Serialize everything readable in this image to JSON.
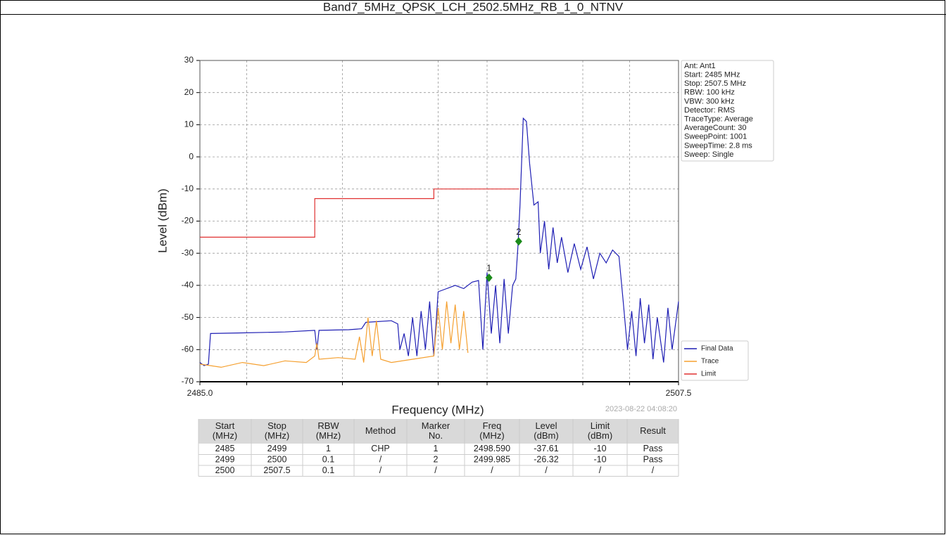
{
  "header": {
    "title": "Band7_5MHz_QPSK_LCH_2502.5MHz_RB_1_0_NTNV"
  },
  "chart_data": {
    "type": "line",
    "xlabel": "Frequency (MHz)",
    "ylabel": "Level (dBm)",
    "xlim": [
      2485.0,
      2507.5
    ],
    "ylim": [
      -70,
      30
    ],
    "xticks": [
      {
        "value": 2485.0,
        "label": "2485.0"
      },
      {
        "value": 2487.2,
        "label": null
      },
      {
        "value": 2491.7,
        "label": null
      },
      {
        "value": 2496.2,
        "label": null
      },
      {
        "value": 2498.5,
        "label": null
      },
      {
        "value": 2503.0,
        "label": null
      },
      {
        "value": 2505.2,
        "label": null
      },
      {
        "value": 2507.5,
        "label": "2507.5"
      }
    ],
    "yticks": [
      30,
      20,
      10,
      0,
      -10,
      -20,
      -30,
      -40,
      -50,
      -60,
      -70
    ],
    "grid": true,
    "legend": "lower right",
    "series": [
      {
        "name": "Final Data",
        "color": "#1f1fb4",
        "x": [
          2485.0,
          2485.2,
          2485.4,
          2485.5,
          2487.0,
          2489.0,
          2490.4,
          2490.5,
          2490.6,
          2492.0,
          2492.6,
          2492.8,
          2494.0,
          2494.3,
          2494.4,
          2494.6,
          2494.8,
          2495.0,
          2495.2,
          2495.4,
          2495.6,
          2495.8,
          2496.0,
          2496.2,
          2496.6,
          2497.0,
          2497.4,
          2497.8,
          2498.1,
          2498.3,
          2498.5,
          2498.7,
          2498.9,
          2499.1,
          2499.3,
          2499.5,
          2499.7,
          2499.85,
          2499.95,
          2500.05,
          2500.2,
          2500.35,
          2500.5,
          2500.7,
          2500.9,
          2501.0,
          2501.2,
          2501.4,
          2501.6,
          2501.8,
          2502.0,
          2502.3,
          2502.6,
          2502.9,
          2503.2,
          2503.5,
          2503.8,
          2504.1,
          2504.4,
          2504.7,
          2504.9,
          2505.1,
          2505.3,
          2505.5,
          2505.7,
          2505.9,
          2506.1,
          2506.3,
          2506.5,
          2506.8,
          2507.0,
          2507.2,
          2507.5
        ],
        "values": [
          -64,
          -65,
          -64.5,
          -55,
          -54.8,
          -54.5,
          -54,
          -60,
          -54,
          -53.8,
          -53.5,
          -51.5,
          -51,
          -52,
          -60,
          -55,
          -62,
          -50,
          -62,
          -48,
          -60,
          -45,
          -62,
          -42,
          -41,
          -40,
          -41,
          -39,
          -38.5,
          -60,
          -36,
          -55,
          -40,
          -58,
          -38,
          -55,
          -40,
          -38,
          -28,
          -15,
          12,
          11,
          -2,
          -15,
          -14,
          -30,
          -20,
          -35,
          -22,
          -33,
          -25,
          -36,
          -27,
          -35,
          -28,
          -38,
          -30,
          -33,
          -29,
          -31,
          -45,
          -60,
          -48,
          -62,
          -44,
          -58,
          -46,
          -63,
          -50,
          -64,
          -47,
          -60,
          -45
        ]
      },
      {
        "name": "Trace",
        "color": "#f5a030",
        "x": [
          2485.0,
          2486.0,
          2487.0,
          2488.0,
          2489.0,
          2490.0,
          2490.4,
          2490.5,
          2490.6,
          2491.5,
          2492.3,
          2492.5,
          2492.7,
          2492.9,
          2493.1,
          2493.3,
          2493.5,
          2494.0,
          2495.0,
          2496.0,
          2496.2,
          2496.4,
          2496.6,
          2496.8,
          2497.0,
          2497.2,
          2497.4,
          2497.6
        ],
        "values": [
          -64.5,
          -65.5,
          -64,
          -65,
          -63.5,
          -64,
          -62,
          -58,
          -63,
          -62.5,
          -63,
          -56,
          -64,
          -50,
          -62,
          -51,
          -63,
          -64,
          -63,
          -62,
          -47,
          -60,
          -45,
          -58,
          -46,
          -60,
          -48,
          -61
        ]
      },
      {
        "name": "Limit",
        "color": "#e03030",
        "x": [
          2485.0,
          2490.4,
          2490.4,
          2496.0,
          2496.0,
          2500.0
        ],
        "values": [
          -25,
          -25,
          -13,
          -13,
          -10,
          -10
        ]
      }
    ],
    "markers": [
      {
        "label": "1",
        "x": 2498.59,
        "y": -37.61,
        "color": "#1a8a1a"
      },
      {
        "label": "2",
        "x": 2499.985,
        "y": -26.32,
        "color": "#1a8a1a"
      }
    ],
    "info": [
      "Ant: Ant1",
      "Start: 2485 MHz",
      "Stop: 2507.5 MHz",
      "RBW: 100 kHz",
      "VBW: 300 kHz",
      "Detector: RMS",
      "TraceType: Average",
      "AverageCount: 30",
      "SweepPoint: 1001",
      "SweepTime: 2.8 ms",
      "Sweep: Single"
    ],
    "timestamp": "2023-08-22 04:08:20"
  },
  "table": {
    "header": [
      [
        "Start",
        "(MHz)"
      ],
      [
        "Stop",
        "(MHz)"
      ],
      [
        "RBW",
        "(MHz)"
      ],
      [
        "Method"
      ],
      [
        "Marker",
        "No."
      ],
      [
        "Freq",
        "(MHz)"
      ],
      [
        "Level",
        "(dBm)"
      ],
      [
        "Limit",
        "(dBm)"
      ],
      [
        "Result"
      ]
    ],
    "rows": [
      [
        "2485",
        "2499",
        "1",
        "CHP",
        "1",
        "2498.590",
        "-37.61",
        "-10",
        "Pass"
      ],
      [
        "2499",
        "2500",
        "0.1",
        "/",
        "2",
        "2499.985",
        "-26.32",
        "-10",
        "Pass"
      ],
      [
        "2500",
        "2507.5",
        "0.1",
        "/",
        "/",
        "/",
        "/",
        "/",
        "/"
      ]
    ]
  }
}
